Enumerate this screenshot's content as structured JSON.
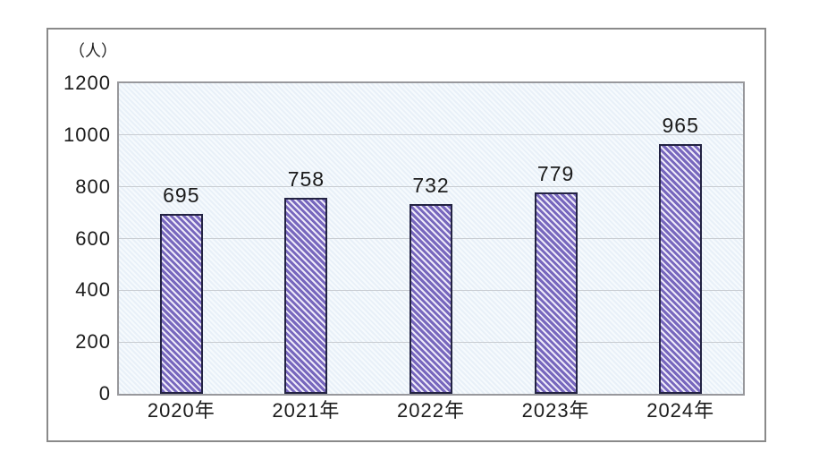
{
  "chart_data": {
    "type": "bar",
    "title": "",
    "unit_label": "（人）",
    "categories": [
      "2020年",
      "2021年",
      "2022年",
      "2023年",
      "2024年"
    ],
    "values": [
      695,
      758,
      732,
      779,
      965
    ],
    "value_labels": [
      "695",
      "758",
      "732",
      "779",
      "965"
    ],
    "ylabel": "（人）",
    "xlabel": "",
    "ylim": [
      0,
      1200
    ],
    "yticks": [
      0,
      200,
      400,
      600,
      800,
      1000,
      1200
    ],
    "ytick_labels": [
      "0",
      "200",
      "400",
      "600",
      "800",
      "1000",
      "1200"
    ],
    "grid": true,
    "legend_position": "none"
  },
  "colors": {
    "bar_stripe": "#7767bd",
    "bar_stripe_gap": "#eeeaf9",
    "bar_border": "#232343",
    "plot_background": "#e8f0f8",
    "gridline": "#c9cdd2",
    "plot_border": "#98989c",
    "frame_border": "#8a8a8a",
    "text": "#1c1c1c",
    "page_background": "#ffffff"
  }
}
